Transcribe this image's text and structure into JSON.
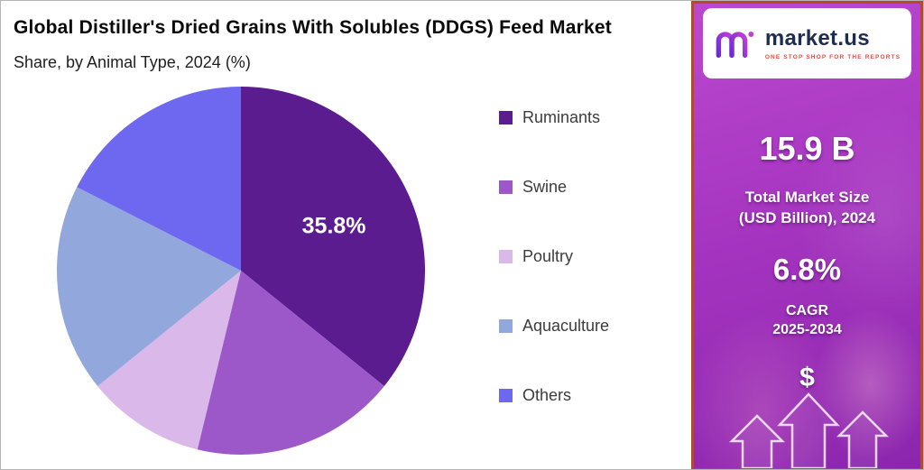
{
  "colors": {
    "panel-top": "#bb49d0",
    "panel-mid": "#a635c0",
    "panel-bottom": "#8c26ae",
    "panel-border": "#b84a1d",
    "brand-navy": "#1e2c52",
    "brand-red": "#e8493a",
    "title-color": "#0a0a0a",
    "legend-text": "#3c3c3c"
  },
  "header": {
    "title": "Global Distiller's Dried Grains With Solubles (DDGS) Feed Market",
    "subtitle": "Share, by Animal Type, 2024 (%)"
  },
  "chart_data": {
    "type": "pie",
    "title": "Global Distiller's Dried Grains With Solubles (DDGS) Feed Market Share, by Animal Type, 2024 (%)",
    "unit": "%",
    "labels": [
      "Ruminants",
      "Swine",
      "Poultry",
      "Aquaculture",
      "Others"
    ],
    "values": [
      35.8,
      18.0,
      10.4,
      18.3,
      17.5
    ],
    "colors": [
      "#5a1c8e",
      "#9c58c8",
      "#dab9ea",
      "#92a7db",
      "#6d68ef"
    ],
    "data_labels": [
      "35.8%",
      "",
      "",
      "",
      ""
    ],
    "start_angle": "top",
    "direction": "clockwise",
    "legend_position": "right"
  },
  "side_panel": {
    "logo": {
      "brand": "market.us",
      "tagline": "ONE STOP SHOP FOR THE REPORTS"
    },
    "stat_market_size": {
      "value": "15.9 B",
      "label_line1": "Total Market Size",
      "label_line2": "(USD Billion), 2024"
    },
    "stat_cagr": {
      "value": "6.8%",
      "label_line1": "CAGR",
      "label_line2": "2025-2034"
    },
    "dollar_symbol": "$"
  }
}
